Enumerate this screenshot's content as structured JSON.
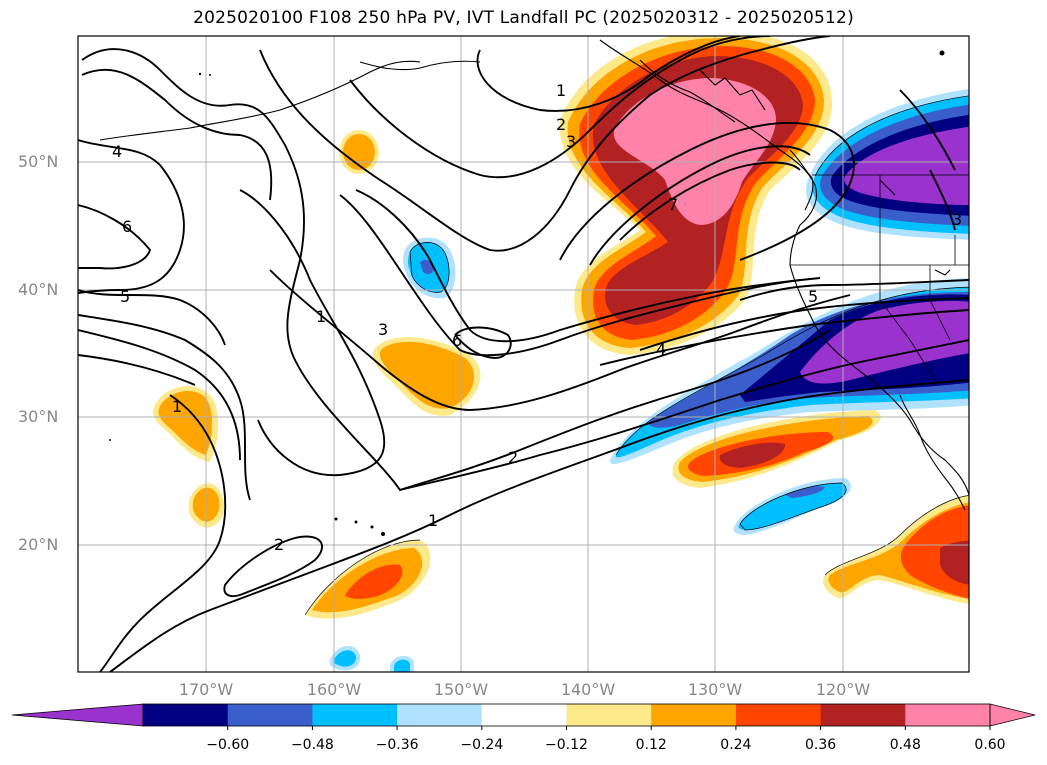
{
  "title": "2025020100 F108 250 hPa PV, IVT Landfall PC (2025020312 - 2025020512)",
  "lat_labels": [
    "50°N",
    "40°N",
    "30°N",
    "20°N"
  ],
  "lon_labels": [
    "170°W",
    "160°W",
    "150°W",
    "140°W",
    "130°W",
    "120°W"
  ],
  "colorbar": {
    "levels": [
      "−0.60",
      "−0.48",
      "−0.36",
      "−0.24",
      "−0.12",
      "0.12",
      "0.24",
      "0.36",
      "0.48",
      "0.60"
    ],
    "colors": [
      "#9a32cd",
      "#000080",
      "#3a5fcd",
      "#00bfff",
      "#b0e2ff",
      "#ffffff",
      "#fde989",
      "#ffa500",
      "#ff4500",
      "#b22222",
      "#ff82ab",
      "#ff82ab"
    ]
  },
  "contour_labels": [
    "1",
    "2",
    "3",
    "4",
    "5",
    "6",
    "7",
    "1",
    "3",
    "6",
    "4",
    "5",
    "2",
    "1",
    "2",
    "1",
    "5"
  ]
}
